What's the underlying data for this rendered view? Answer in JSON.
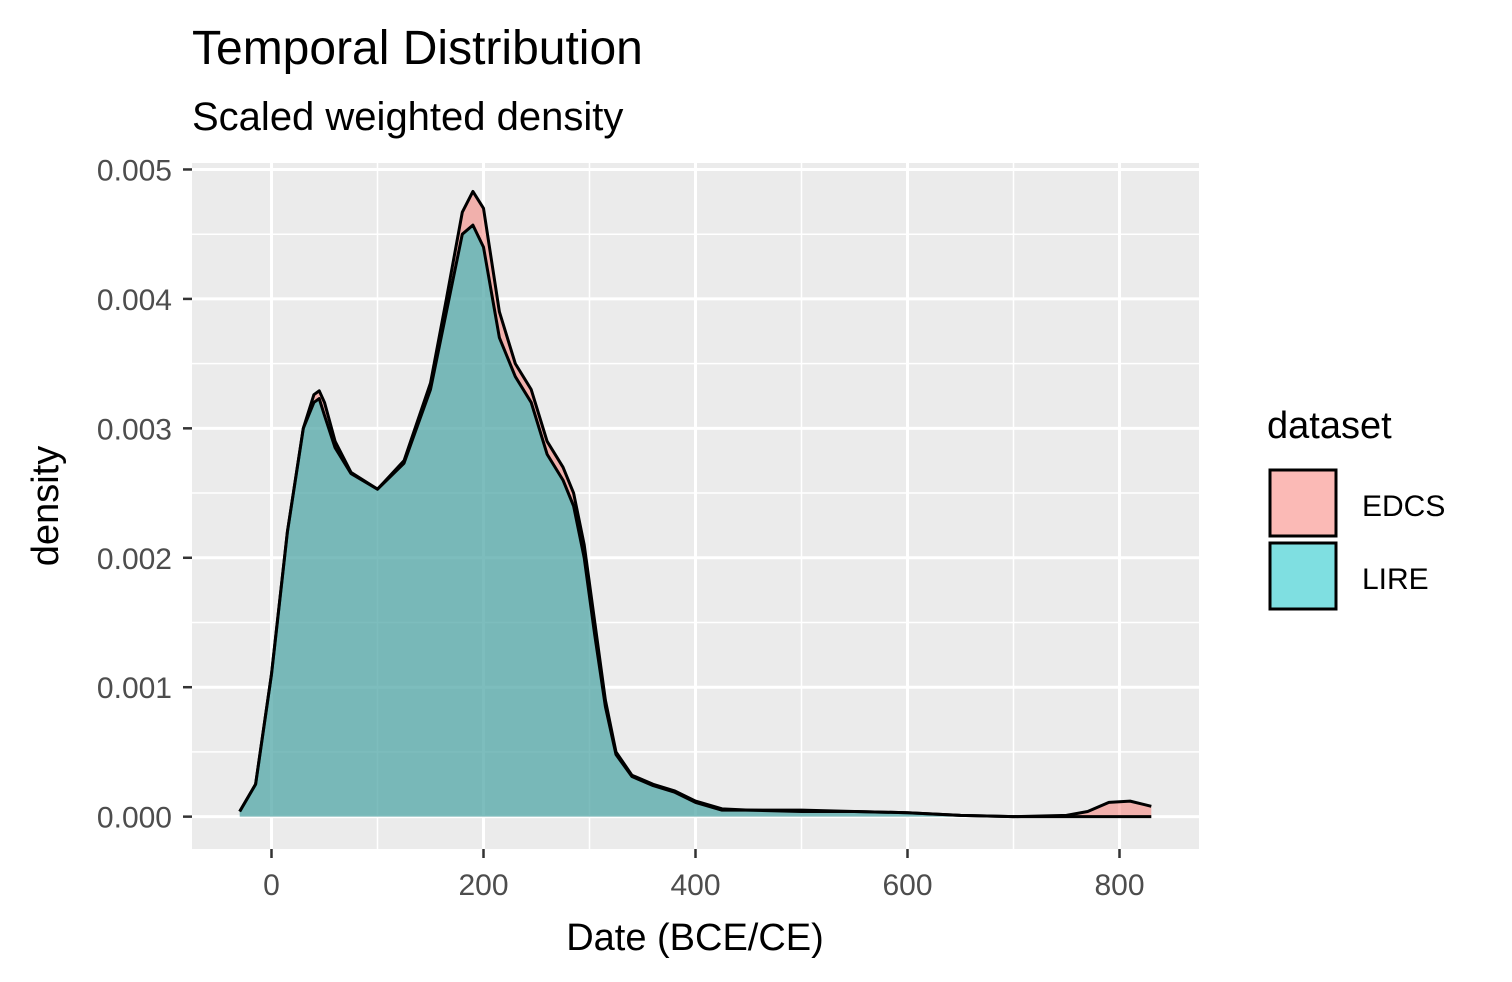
{
  "chart_data": {
    "type": "area",
    "title": "Temporal Distribution",
    "subtitle": "Scaled weighted density",
    "xlabel": "Date (BCE/CE)",
    "ylabel": "density",
    "xlim": [
      -75,
      875
    ],
    "ylim": [
      -0.00025,
      0.00505
    ],
    "x_ticks": [
      0,
      200,
      400,
      600,
      800
    ],
    "y_ticks": [
      0.0,
      0.001,
      0.002,
      0.003,
      0.004,
      0.005
    ],
    "x_tick_labels": [
      "0",
      "200",
      "400",
      "600",
      "800"
    ],
    "y_tick_labels": [
      "0.000",
      "0.001",
      "0.002",
      "0.003",
      "0.004",
      "0.005"
    ],
    "grid": true,
    "legend": {
      "title": "dataset",
      "position": "right",
      "entries": [
        {
          "label": "EDCS",
          "color": "#F8766D"
        },
        {
          "label": "LIRE",
          "color": "#00BFC4"
        }
      ]
    },
    "series": [
      {
        "name": "EDCS",
        "color": "#F8766D",
        "x": [
          -30,
          -15,
          0,
          15,
          30,
          40,
          45,
          50,
          60,
          75,
          100,
          125,
          150,
          165,
          180,
          190,
          200,
          215,
          230,
          245,
          260,
          275,
          285,
          295,
          305,
          315,
          325,
          340,
          360,
          380,
          400,
          425,
          450,
          500,
          550,
          600,
          650,
          700,
          750,
          770,
          790,
          810,
          830
        ],
        "y": [
          4e-05,
          0.00025,
          0.0011,
          0.0022,
          0.003,
          0.00326,
          0.00329,
          0.0032,
          0.0029,
          0.00266,
          0.00253,
          0.00275,
          0.00335,
          0.004,
          0.00467,
          0.00483,
          0.0047,
          0.0039,
          0.0035,
          0.0033,
          0.0029,
          0.0027,
          0.0025,
          0.0021,
          0.0015,
          0.0009,
          0.0005,
          0.00032,
          0.00025,
          0.0002,
          0.00012,
          6e-05,
          5e-05,
          5e-05,
          4e-05,
          3e-05,
          1e-05,
          0.0,
          1e-05,
          4e-05,
          0.00011,
          0.00012,
          8e-05
        ]
      },
      {
        "name": "LIRE",
        "color": "#00BFC4",
        "x": [
          -30,
          -15,
          0,
          15,
          30,
          40,
          45,
          50,
          60,
          75,
          100,
          125,
          150,
          165,
          180,
          190,
          200,
          215,
          230,
          245,
          260,
          275,
          285,
          295,
          305,
          315,
          325,
          340,
          360,
          380,
          400,
          425,
          450,
          500,
          550,
          600,
          650,
          700,
          750,
          780,
          810,
          830
        ],
        "y": [
          4e-05,
          0.00025,
          0.0011,
          0.0022,
          0.003,
          0.0032,
          0.00323,
          0.0031,
          0.00285,
          0.00265,
          0.00253,
          0.00273,
          0.0033,
          0.0039,
          0.0045,
          0.00457,
          0.0044,
          0.0037,
          0.0034,
          0.0032,
          0.0028,
          0.0026,
          0.0024,
          0.002,
          0.0014,
          0.00085,
          0.00048,
          0.00031,
          0.00024,
          0.00019,
          0.00011,
          5e-05,
          5e-05,
          4e-05,
          4e-05,
          3e-05,
          1e-05,
          0.0,
          0.0,
          0.0,
          0.0,
          0.0
        ]
      }
    ]
  }
}
